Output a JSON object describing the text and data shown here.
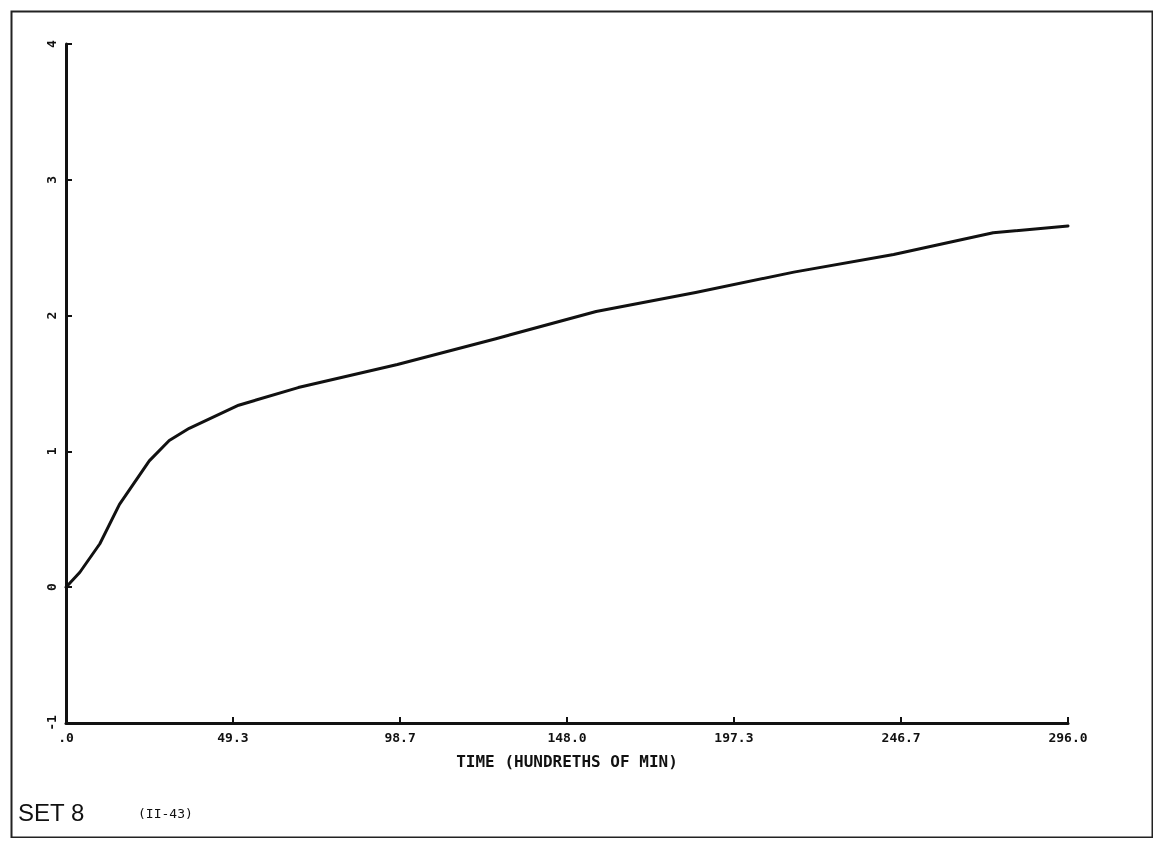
{
  "chart_data": {
    "type": "line",
    "xlabel": "TIME (HUNDRETHS OF MIN)",
    "annotations": [
      "SET 8",
      "(II-43)"
    ],
    "x": [
      0,
      4.1,
      10,
      15.8,
      24.6,
      30.5,
      36.4,
      51,
      68.6,
      97.9,
      127,
      156.6,
      186,
      215,
      244.5,
      273.9,
      296
    ],
    "series": [
      {
        "color": "#111111",
        "values": [
          0,
          0.11,
          0.32,
          0.61,
          0.93,
          1.08,
          1.17,
          1.34,
          1.47,
          1.64,
          1.83,
          2.03,
          2.17,
          2.32,
          2.45,
          2.61,
          2.66
        ]
      }
    ],
    "xlim": [
      0,
      296
    ],
    "xticks": [
      {
        "value": 0,
        "label": ".0"
      },
      49.3,
      98.7,
      {
        "value": 148,
        "label": "148.0"
      },
      197.3,
      246.7,
      {
        "value": 296,
        "label": "296.0"
      }
    ],
    "ylim": [
      -1,
      4
    ],
    "yticks": [
      -1,
      0,
      1,
      2,
      3,
      4
    ],
    "marker": "none",
    "line_style": "solid"
  }
}
